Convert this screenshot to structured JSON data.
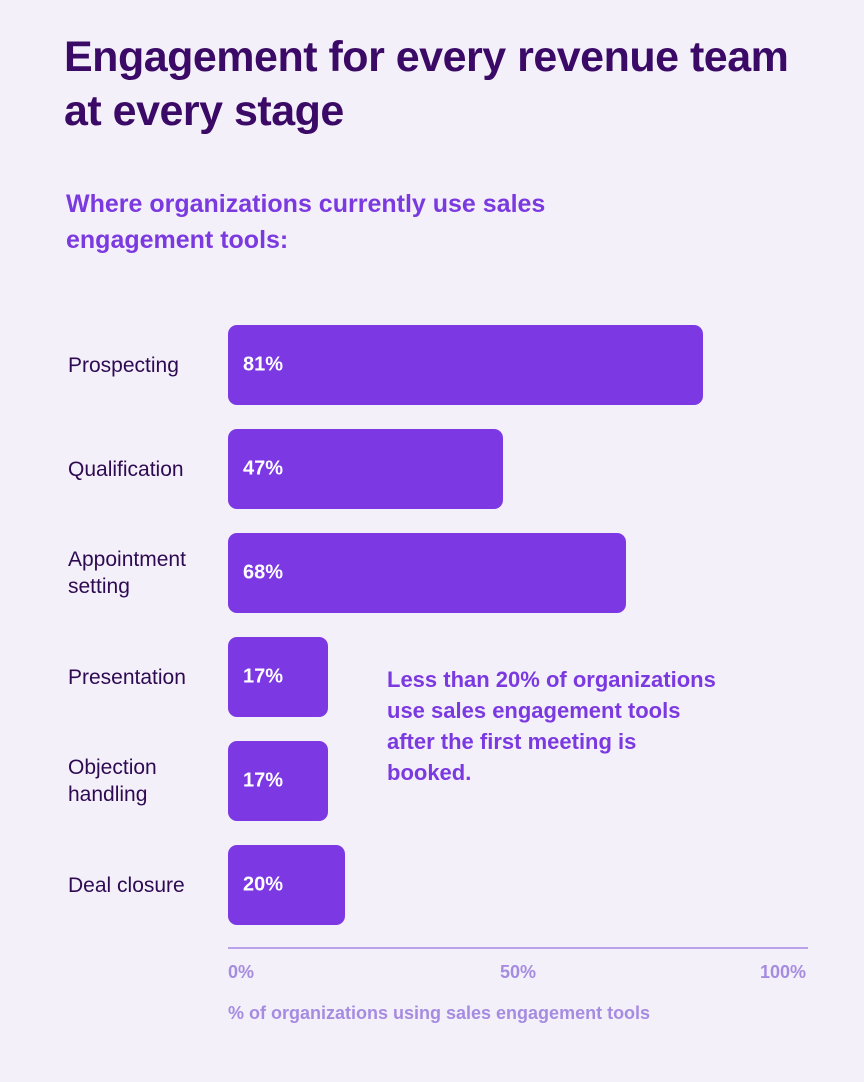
{
  "title": "Engagement for every revenue team at every stage",
  "subtitle": "Where organizations currently use sales engagement tools:",
  "annotation": "Less than 20% of organizations use sales engagement tools after the first meeting is booked.",
  "colors": {
    "bar": "#7b38e3",
    "title": "#3a0a66",
    "accent": "#7b3ae0",
    "axis": "#a58ce0",
    "background": "#f4f0fa"
  },
  "chart_data": {
    "type": "bar",
    "orientation": "horizontal",
    "categories": [
      "Prospecting",
      "Qualification",
      "Appointment setting",
      "Presentation",
      "Objection handling",
      "Deal closure"
    ],
    "values": [
      81,
      47,
      68,
      17,
      17,
      20
    ],
    "value_labels": [
      "81%",
      "47%",
      "68%",
      "17%",
      "17%",
      "20%"
    ],
    "xlim": [
      0,
      100
    ],
    "x_ticks": [
      "0%",
      "50%",
      "100%"
    ],
    "xlabel": "% of organizations using sales engagement tools",
    "grid": false
  }
}
